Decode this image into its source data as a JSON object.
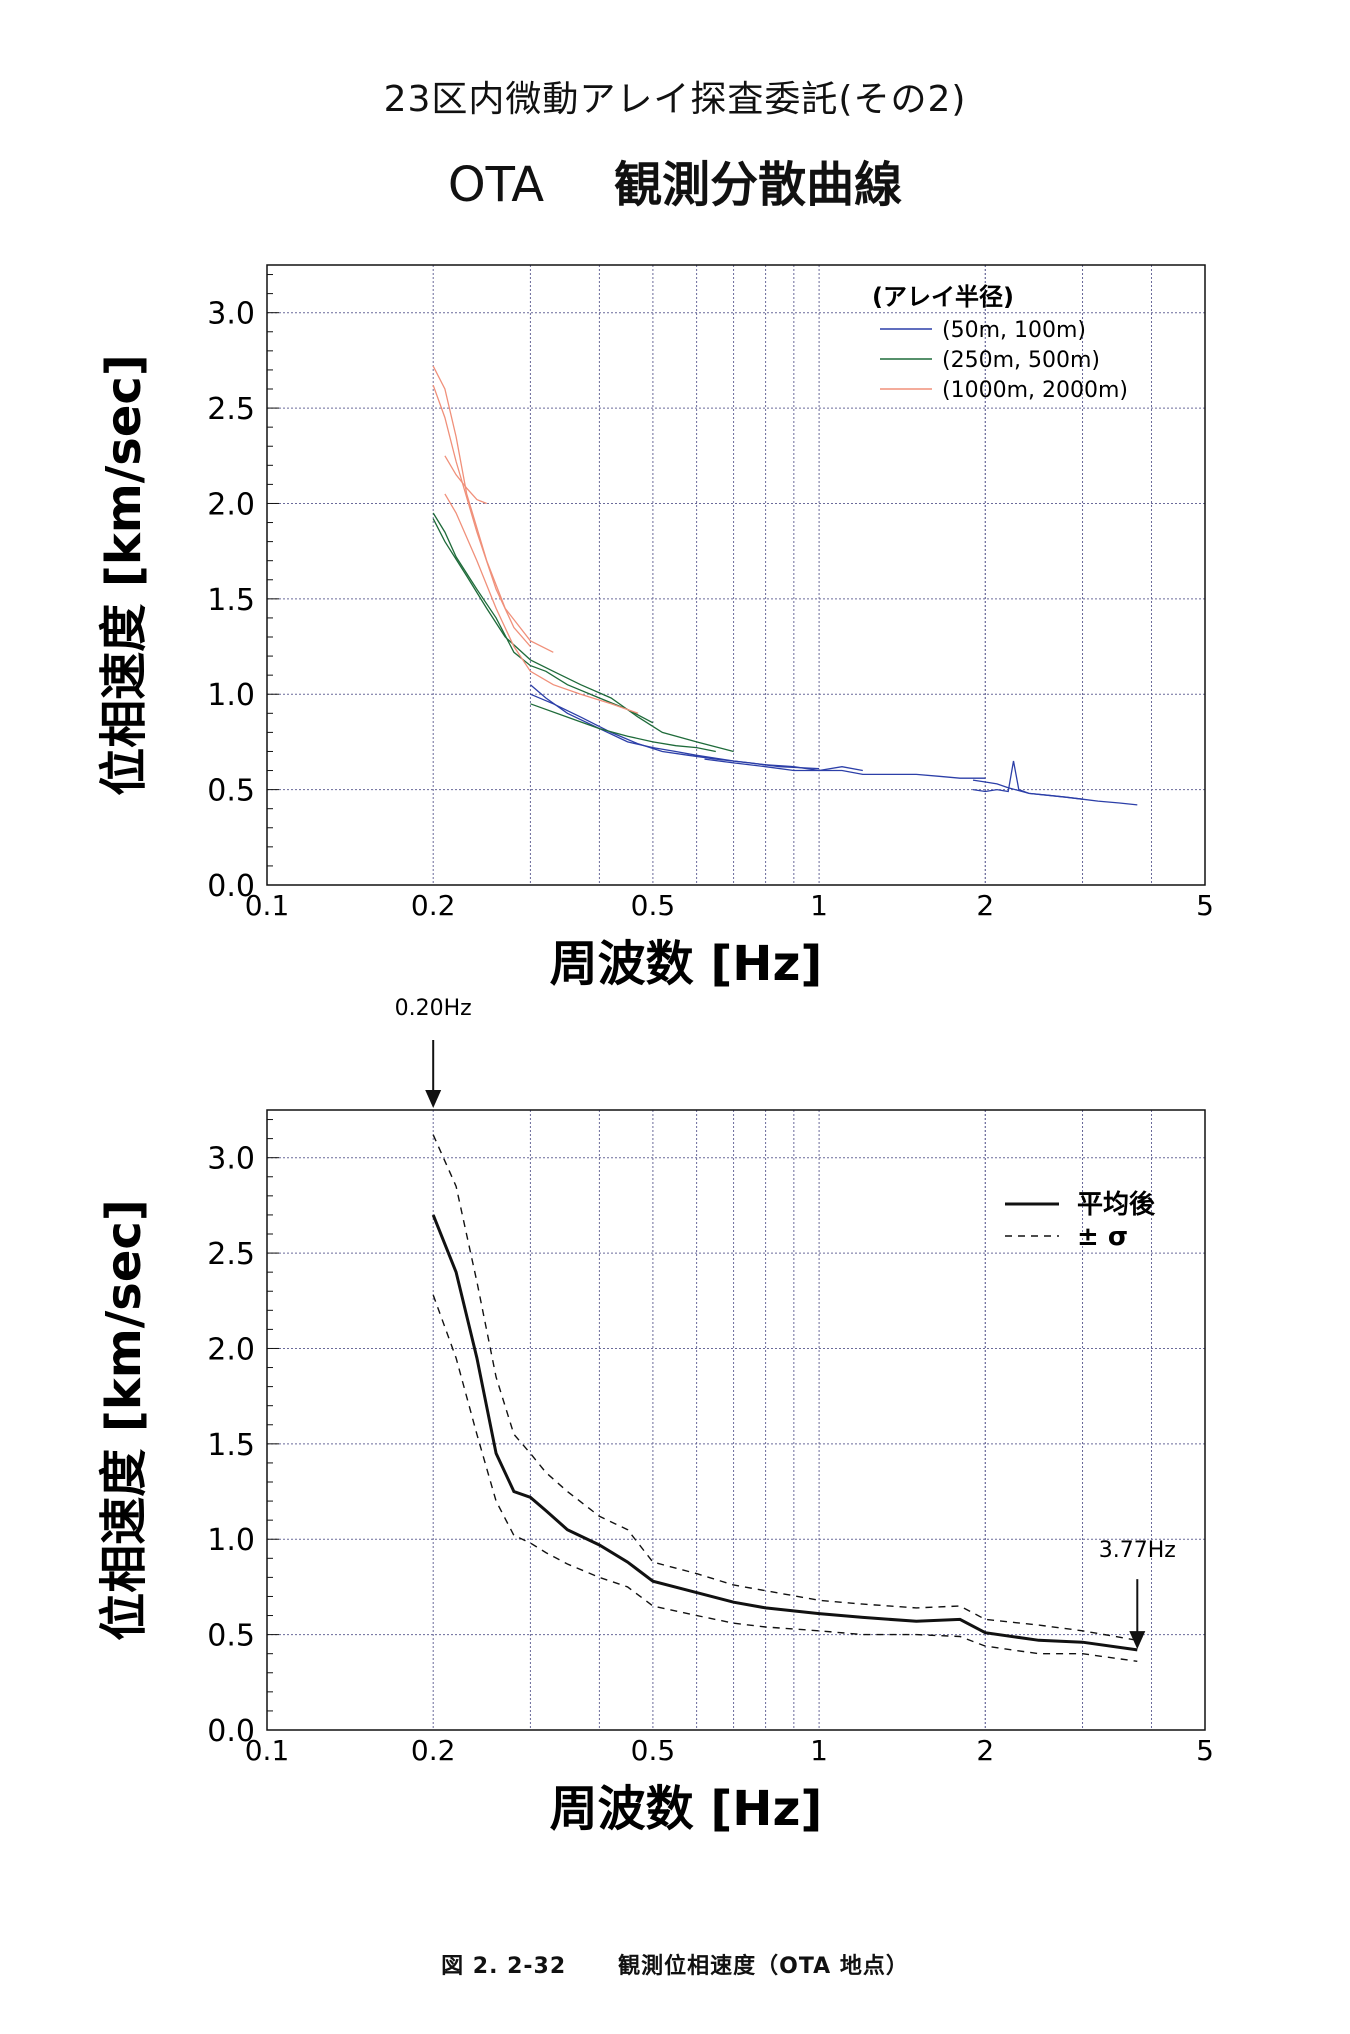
{
  "page": {
    "title_line1": "23区内微動アレイ探査委託(その2)",
    "title_site": "OTA",
    "title_line2": "観測分散曲線",
    "caption_number": "図 2. 2-32",
    "caption_text": "観測位相速度（OTA 地点）"
  },
  "chart_data": [
    {
      "type": "line",
      "xlabel": "周波数 [Hz]",
      "ylabel": "位相速度 [km/sec]",
      "xscale": "log",
      "xlim": [
        0.1,
        5
      ],
      "ylim": [
        0,
        3.25
      ],
      "xticks": [
        0.1,
        0.2,
        0.5,
        1,
        2,
        5
      ],
      "xticklabels": [
        "0.1",
        "0.2",
        "0.5",
        "1",
        "2",
        "5"
      ],
      "yticks": [
        0.0,
        0.5,
        1.0,
        1.5,
        2.0,
        2.5,
        3.0
      ],
      "yticklabels": [
        "0.0",
        "0.5",
        "1.0",
        "1.5",
        "2.0",
        "2.5",
        "3.0"
      ],
      "grid": true,
      "legend_position": "top-right",
      "legend_title": "(アレイ半径)",
      "series": [
        {
          "name": "(50m, 100m)",
          "color": "#2c3fa8",
          "style": "solid",
          "width": 1.3,
          "curves": [
            {
              "x": [
                0.3,
                0.32,
                0.35,
                0.4,
                0.45,
                0.5,
                0.55,
                0.6,
                0.7,
                0.8,
                0.9,
                1.0,
                1.1,
                1.2
              ],
              "y": [
                1.05,
                0.98,
                0.9,
                0.82,
                0.75,
                0.72,
                0.7,
                0.68,
                0.65,
                0.63,
                0.62,
                0.6,
                0.62,
                0.6
              ]
            },
            {
              "x": [
                0.3,
                0.33,
                0.37,
                0.42,
                0.47,
                0.52,
                0.58,
                0.65,
                0.75,
                0.85,
                1.0
              ],
              "y": [
                1.0,
                0.95,
                0.88,
                0.8,
                0.74,
                0.7,
                0.68,
                0.66,
                0.64,
                0.62,
                0.61
              ]
            },
            {
              "x": [
                0.62,
                0.7,
                0.8,
                0.9,
                1.0,
                1.1,
                1.2,
                1.35,
                1.5,
                1.65,
                1.8,
                2.0
              ],
              "y": [
                0.66,
                0.64,
                0.62,
                0.6,
                0.6,
                0.6,
                0.58,
                0.58,
                0.58,
                0.57,
                0.56,
                0.56
              ]
            },
            {
              "x": [
                1.9,
                2.0,
                2.1,
                2.2,
                2.25,
                2.3,
                2.4,
                2.6,
                2.8,
                3.0,
                3.2,
                3.5,
                3.77
              ],
              "y": [
                0.5,
                0.49,
                0.5,
                0.49,
                0.65,
                0.5,
                0.48,
                0.47,
                0.46,
                0.45,
                0.44,
                0.43,
                0.42
              ]
            },
            {
              "x": [
                1.9,
                2.0,
                2.1,
                2.2,
                2.4,
                2.6,
                2.8,
                3.0
              ],
              "y": [
                0.55,
                0.54,
                0.53,
                0.51,
                0.48,
                0.47,
                0.46,
                0.45
              ]
            }
          ]
        },
        {
          "name": "(250m, 500m)",
          "color": "#1f6b3a",
          "style": "solid",
          "width": 1.3,
          "curves": [
            {
              "x": [
                0.2,
                0.21,
                0.22,
                0.24,
                0.26,
                0.28,
                0.3,
                0.32,
                0.35,
                0.4,
                0.45,
                0.5
              ],
              "y": [
                1.95,
                1.85,
                1.72,
                1.55,
                1.4,
                1.22,
                1.15,
                1.12,
                1.05,
                0.98,
                0.92,
                0.85
              ]
            },
            {
              "x": [
                0.2,
                0.21,
                0.23,
                0.25,
                0.27,
                0.3,
                0.33,
                0.37,
                0.42,
                0.47,
                0.52,
                0.6,
                0.7
              ],
              "y": [
                1.92,
                1.8,
                1.62,
                1.45,
                1.3,
                1.18,
                1.12,
                1.05,
                0.98,
                0.88,
                0.8,
                0.75,
                0.7
              ]
            },
            {
              "x": [
                0.3,
                0.35,
                0.4,
                0.45,
                0.5,
                0.55,
                0.6,
                0.65
              ],
              "y": [
                0.95,
                0.88,
                0.82,
                0.78,
                0.75,
                0.73,
                0.72,
                0.7
              ]
            }
          ]
        },
        {
          "name": "(1000m, 2000m)",
          "color": "#f0907a",
          "style": "solid",
          "width": 1.3,
          "curves": [
            {
              "x": [
                0.2,
                0.21,
                0.22,
                0.23,
                0.25,
                0.27,
                0.3,
                0.33
              ],
              "y": [
                2.72,
                2.6,
                2.35,
                2.05,
                1.7,
                1.45,
                1.28,
                1.22
              ]
            },
            {
              "x": [
                0.2,
                0.21,
                0.22,
                0.24,
                0.26,
                0.28,
                0.3
              ],
              "y": [
                2.62,
                2.45,
                2.22,
                1.85,
                1.55,
                1.35,
                1.25
              ]
            },
            {
              "x": [
                0.21,
                0.22,
                0.23,
                0.24,
                0.25
              ],
              "y": [
                2.25,
                2.15,
                2.08,
                2.02,
                2.0
              ]
            },
            {
              "x": [
                0.21,
                0.22,
                0.24,
                0.26,
                0.28,
                0.3,
                0.33,
                0.37,
                0.42,
                0.47
              ],
              "y": [
                2.05,
                1.95,
                1.7,
                1.45,
                1.25,
                1.12,
                1.05,
                1.0,
                0.95,
                0.9
              ]
            }
          ]
        }
      ]
    },
    {
      "type": "line",
      "xlabel": "周波数 [Hz]",
      "ylabel": "位相速度 [km/sec]",
      "xscale": "log",
      "xlim": [
        0.1,
        5
      ],
      "ylim": [
        0,
        3.25
      ],
      "xticks": [
        0.1,
        0.2,
        0.5,
        1,
        2,
        5
      ],
      "xticklabels": [
        "0.1",
        "0.2",
        "0.5",
        "1",
        "2",
        "5"
      ],
      "yticks": [
        0.0,
        0.5,
        1.0,
        1.5,
        2.0,
        2.5,
        3.0
      ],
      "yticklabels": [
        "0.0",
        "0.5",
        "1.0",
        "1.5",
        "2.0",
        "2.5",
        "3.0"
      ],
      "grid": true,
      "legend_position": "top-right",
      "annotations": [
        {
          "text": "0.20Hz",
          "x": 0.2,
          "y": 3.25
        },
        {
          "text": "3.77Hz",
          "x": 3.77,
          "y": 0.45
        }
      ],
      "series": [
        {
          "name": "平均後",
          "color": "#111111",
          "style": "solid",
          "width": 3,
          "x": [
            0.2,
            0.22,
            0.24,
            0.26,
            0.28,
            0.3,
            0.32,
            0.35,
            0.4,
            0.45,
            0.5,
            0.6,
            0.7,
            0.8,
            1.0,
            1.2,
            1.5,
            1.8,
            2.0,
            2.5,
            3.0,
            3.77
          ],
          "y": [
            2.7,
            2.4,
            1.95,
            1.45,
            1.25,
            1.22,
            1.15,
            1.05,
            0.97,
            0.88,
            0.78,
            0.72,
            0.67,
            0.64,
            0.61,
            0.59,
            0.57,
            0.58,
            0.51,
            0.47,
            0.46,
            0.42
          ]
        },
        {
          "name": "± σ",
          "color": "#111111",
          "style": "dashed",
          "width": 1.4,
          "x": [
            0.2,
            0.22,
            0.24,
            0.26,
            0.28,
            0.3,
            0.32,
            0.35,
            0.4,
            0.45,
            0.5,
            0.6,
            0.7,
            0.8,
            1.0,
            1.2,
            1.5,
            1.8,
            2.0,
            2.5,
            3.0,
            3.77
          ],
          "y": [
            3.12,
            2.85,
            2.35,
            1.85,
            1.55,
            1.45,
            1.35,
            1.25,
            1.12,
            1.05,
            0.88,
            0.82,
            0.76,
            0.73,
            0.68,
            0.66,
            0.64,
            0.65,
            0.58,
            0.55,
            0.52,
            0.47
          ]
        },
        {
          "name": "",
          "color": "#111111",
          "style": "dashed",
          "width": 1.4,
          "x": [
            0.2,
            0.22,
            0.24,
            0.26,
            0.28,
            0.3,
            0.32,
            0.35,
            0.4,
            0.45,
            0.5,
            0.6,
            0.7,
            0.8,
            1.0,
            1.2,
            1.5,
            1.8,
            2.0,
            2.5,
            3.0,
            3.77
          ],
          "y": [
            2.28,
            1.95,
            1.55,
            1.2,
            1.02,
            0.98,
            0.93,
            0.87,
            0.8,
            0.75,
            0.65,
            0.6,
            0.56,
            0.54,
            0.52,
            0.5,
            0.5,
            0.49,
            0.44,
            0.4,
            0.4,
            0.36
          ]
        }
      ]
    }
  ]
}
